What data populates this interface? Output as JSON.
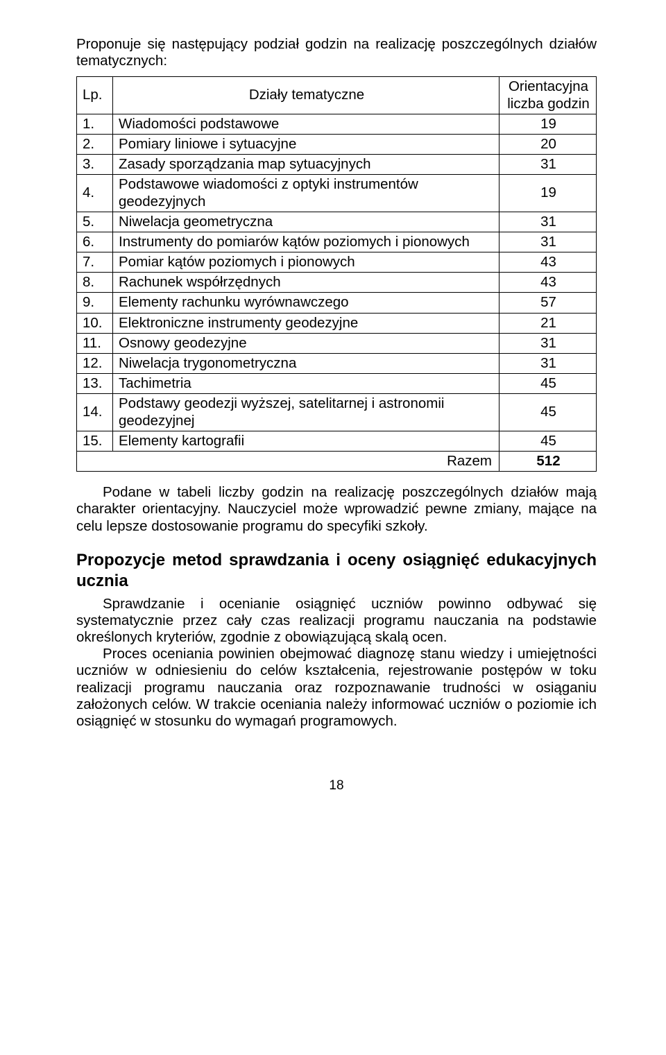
{
  "intro": "Proponuje się następujący podział godzin na realizację poszczególnych działów tematycznych:",
  "table": {
    "header": {
      "lp": "Lp.",
      "name": "Działy tematyczne",
      "hours": "Orientacyjna liczba godzin"
    },
    "rows": [
      {
        "lp": "1.",
        "name": "Wiadomości podstawowe",
        "hours": "19"
      },
      {
        "lp": "2.",
        "name": "Pomiary liniowe i sytuacyjne",
        "hours": "20"
      },
      {
        "lp": "3.",
        "name": "Zasady sporządzania map sytuacyjnych",
        "hours": "31"
      },
      {
        "lp": "4.",
        "name": "Podstawowe wiadomości z optyki instrumentów geodezyjnych",
        "hours": "19"
      },
      {
        "lp": "5.",
        "name": "Niwelacja geometryczna",
        "hours": "31"
      },
      {
        "lp": "6.",
        "name": "Instrumenty do pomiarów kątów poziomych i pionowych",
        "hours": "31"
      },
      {
        "lp": "7.",
        "name": "Pomiar kątów poziomych i pionowych",
        "hours": "43"
      },
      {
        "lp": "8.",
        "name": "Rachunek współrzędnych",
        "hours": "43"
      },
      {
        "lp": "9.",
        "name": "Elementy rachunku wyrównawczego",
        "hours": "57"
      },
      {
        "lp": "10.",
        "name": "Elektroniczne instrumenty geodezyjne",
        "hours": "21"
      },
      {
        "lp": "11.",
        "name": "Osnowy geodezyjne",
        "hours": "31"
      },
      {
        "lp": "12.",
        "name": "Niwelacja trygonometryczna",
        "hours": "31"
      },
      {
        "lp": "13.",
        "name": "Tachimetria",
        "hours": "45"
      },
      {
        "lp": "14.",
        "name": "Podstawy geodezji wyższej, satelitarnej i astronomii geodezyjnej",
        "hours": "45"
      },
      {
        "lp": "15.",
        "name": "Elementy kartografii",
        "hours": "45"
      }
    ],
    "total_label": "Razem",
    "total_value": "512"
  },
  "para1": "Podane w tabeli liczby godzin na realizację poszczególnych działów mają charakter orientacyjny. Nauczyciel może wprowadzić pewne zmiany, mające na celu lepsze dostosowanie programu do specyfiki szkoły.",
  "subsection_heading": "Propozycje metod sprawdzania i oceny osiągnięć edukacyjnych ucznia",
  "para2": "Sprawdzanie i ocenianie osiągnięć uczniów powinno odbywać się systematycznie przez cały czas realizacji programu nauczania na podstawie określonych kryteriów, zgodnie z obowiązującą skalą ocen.",
  "para3": "Proces oceniania powinien obejmować diagnozę stanu wiedzy i umiejętności uczniów w odniesieniu do celów kształcenia, rejestrowanie postępów w toku realizacji programu nauczania oraz rozpoznawanie trudności w osiąganiu założonych celów. W trakcie oceniania należy informować uczniów o poziomie ich osiągnięć w stosunku do wymagań programowych.",
  "page_number": "18"
}
